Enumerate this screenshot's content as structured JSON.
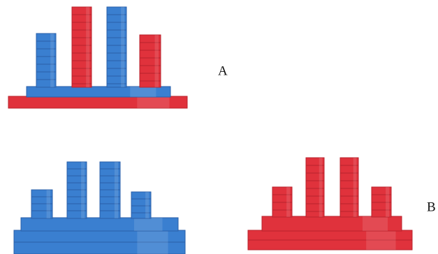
{
  "figures": [
    {
      "label": "A"
    },
    {
      "label": "B"
    }
  ]
}
